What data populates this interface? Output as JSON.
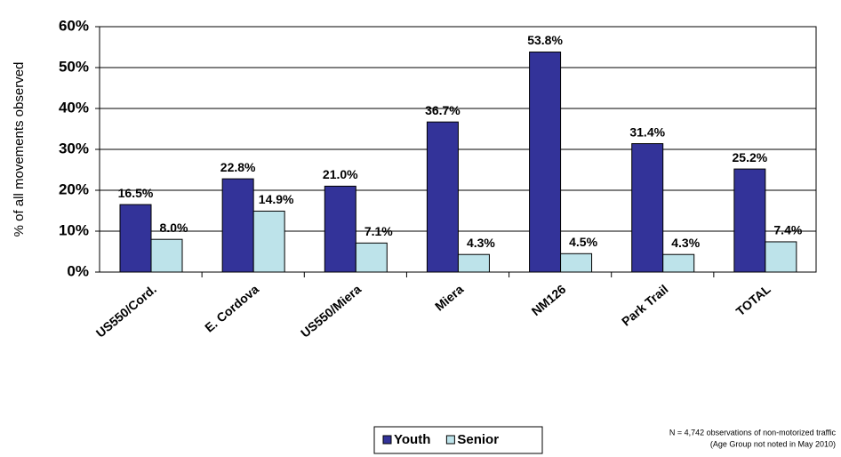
{
  "chart_data": {
    "type": "bar",
    "y_label": "% of all movements observed",
    "categories": [
      "US550/Cord.",
      "E. Cordova",
      "US550/Miera",
      "Miera",
      "NM126",
      "Park Trail",
      "TOTAL"
    ],
    "series": [
      {
        "name": "Youth",
        "color": "#333399",
        "values": [
          16.5,
          22.8,
          21.0,
          36.7,
          53.8,
          31.4,
          25.2
        ],
        "value_labels": [
          "16.5%",
          "22.8%",
          "21.0%",
          "36.7%",
          "53.8%",
          "31.4%",
          "25.2%"
        ]
      },
      {
        "name": "Senior",
        "color": "#bde3ea",
        "values": [
          8.0,
          14.9,
          7.1,
          4.3,
          4.5,
          4.3,
          7.4
        ],
        "value_labels": [
          "8.0%",
          "14.9%",
          "7.1%",
          "4.3%",
          "4.5%",
          "4.3%",
          "7.4%"
        ]
      }
    ],
    "ylim": [
      0,
      60
    ],
    "yticks": [
      {
        "value": 0,
        "label": "0%"
      },
      {
        "value": 10,
        "label": "10%"
      },
      {
        "value": 20,
        "label": "20%"
      },
      {
        "value": 30,
        "label": "30%"
      },
      {
        "value": 40,
        "label": "40%"
      },
      {
        "value": 50,
        "label": "50%"
      },
      {
        "value": 60,
        "label": "60%"
      }
    ],
    "grid": true,
    "legend": "bottom",
    "annotations": [
      "N = 4,742 observations of non-motorized traffic",
      "(Age Group not noted in May 2010)"
    ]
  }
}
